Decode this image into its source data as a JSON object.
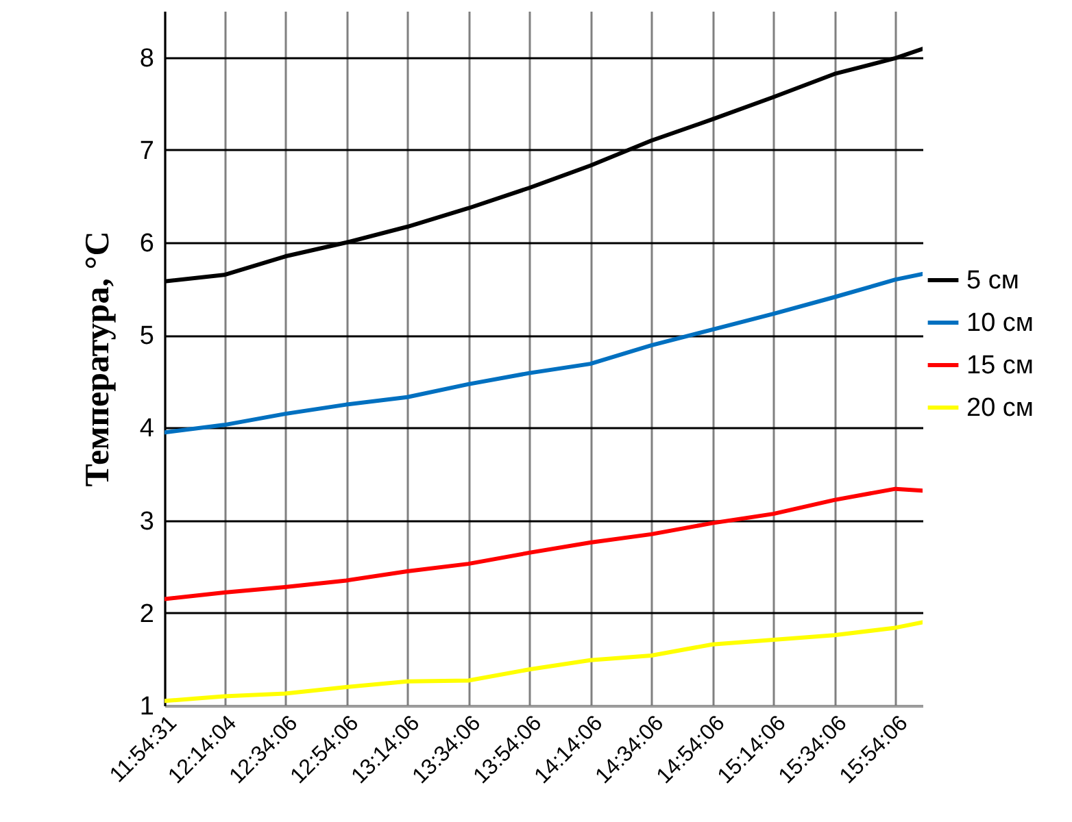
{
  "chart_data": {
    "type": "line",
    "ylabel": "Температура, °С",
    "x": [
      11.9086,
      12.2344,
      12.5683,
      12.9017,
      13.235,
      13.5683,
      13.9017,
      14.235,
      14.5683,
      14.9017,
      15.235,
      15.5683,
      15.9017,
      16.05
    ],
    "series": [
      {
        "name": "5 см",
        "color": "#000000",
        "values": [
          5.58,
          5.65,
          5.85,
          6.0,
          6.17,
          6.37,
          6.59,
          6.83,
          7.1,
          7.33,
          7.57,
          7.82,
          7.99,
          8.09
        ]
      },
      {
        "name": "10 см",
        "color": "#0070c0",
        "values": [
          3.95,
          4.03,
          4.15,
          4.25,
          4.33,
          4.47,
          4.59,
          4.69,
          4.89,
          5.06,
          5.23,
          5.41,
          5.6,
          5.66
        ]
      },
      {
        "name": "15 см",
        "color": "#ff0000",
        "values": [
          2.15,
          2.22,
          2.28,
          2.35,
          2.45,
          2.53,
          2.65,
          2.76,
          2.85,
          2.97,
          3.07,
          3.22,
          3.34,
          3.32
        ]
      },
      {
        "name": "20 см",
        "color": "#ffff00",
        "values": [
          1.05,
          1.1,
          1.13,
          1.2,
          1.26,
          1.27,
          1.39,
          1.49,
          1.54,
          1.66,
          1.71,
          1.76,
          1.84,
          1.9
        ]
      }
    ],
    "xlim": [
      11.9086,
      16.05
    ],
    "xticks": [
      {
        "value": 11.9086,
        "label": "11:54:31"
      },
      {
        "value": 12.2344,
        "label": "12:14:04"
      },
      {
        "value": 12.5683,
        "label": "12:34:06"
      },
      {
        "value": 12.9017,
        "label": "12:54:06"
      },
      {
        "value": 13.235,
        "label": "13:14:06"
      },
      {
        "value": 13.5683,
        "label": "13:34:06"
      },
      {
        "value": 13.9017,
        "label": "13:54:06"
      },
      {
        "value": 14.235,
        "label": "14:14:06"
      },
      {
        "value": 14.5683,
        "label": "14:34:06"
      },
      {
        "value": 14.9017,
        "label": "14:54:06"
      },
      {
        "value": 15.235,
        "label": "15:14:06"
      },
      {
        "value": 15.5683,
        "label": "15:34:06"
      },
      {
        "value": 15.9017,
        "label": "15:54:06"
      }
    ],
    "ylim": [
      1,
      8.5
    ],
    "yticks": [
      1,
      2,
      3,
      4,
      5,
      6,
      7,
      8
    ],
    "grid": true,
    "legend": "right",
    "marker": "none",
    "line_style": "solid"
  }
}
